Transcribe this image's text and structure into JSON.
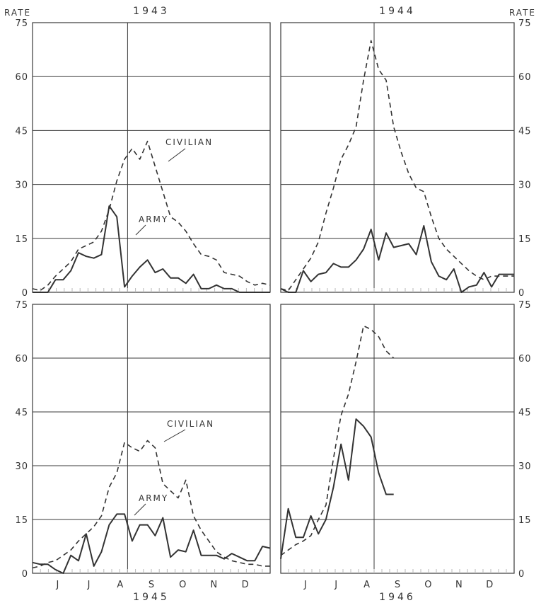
{
  "rate_label": "RATE",
  "colors": {
    "ink": "#333333",
    "grid": "#3a3a3a",
    "background": "#ffffff"
  },
  "chart_data": [
    {
      "type": "line",
      "title": "1943",
      "ylabel": "RATE",
      "ylim": [
        0,
        75
      ],
      "yticks": [
        "0",
        "15",
        "30",
        "45",
        "60",
        "75"
      ],
      "y_axis_side": "left",
      "month_ticks": [],
      "xlim": [
        0,
        31
      ],
      "grid": true,
      "annotations": [
        "CIVILIAN",
        "ARMY"
      ],
      "series": [
        {
          "name": "CIVILIAN",
          "dash": true,
          "x": [
            0,
            1,
            2,
            3,
            4,
            5,
            6,
            7,
            8,
            9,
            10,
            11,
            12,
            13,
            14,
            15,
            16,
            17,
            18,
            19,
            20,
            21,
            22,
            23,
            24,
            25,
            26,
            27,
            28,
            29,
            30,
            31
          ],
          "y": [
            1,
            0.5,
            2,
            4.5,
            6.5,
            8.5,
            12,
            13,
            14,
            17,
            23,
            31,
            37,
            40,
            37,
            42,
            35,
            28,
            21,
            19.5,
            17,
            13.5,
            10.5,
            10,
            9,
            5.5,
            5,
            4.5,
            3,
            2,
            2.5,
            2
          ]
        },
        {
          "name": "ARMY",
          "dash": false,
          "x": [
            0,
            1,
            2,
            3,
            4,
            5,
            6,
            7,
            8,
            9,
            10,
            11,
            12,
            13,
            14,
            15,
            16,
            17,
            18,
            19,
            20,
            21,
            22,
            23,
            24,
            25,
            26,
            27,
            28,
            29,
            30,
            31
          ],
          "y": [
            0,
            0,
            0,
            3.5,
            3.5,
            6,
            11,
            10,
            9.5,
            10.5,
            24,
            21,
            1.5,
            4.5,
            7,
            9,
            5.5,
            6.5,
            4,
            4,
            2.5,
            5,
            1,
            1,
            2,
            1,
            1,
            0,
            0,
            0,
            0,
            0
          ]
        }
      ]
    },
    {
      "type": "line",
      "title": "1944",
      "ylabel": "RATE",
      "ylim": [
        0,
        75
      ],
      "yticks": [
        "0",
        "15",
        "30",
        "45",
        "60",
        "75"
      ],
      "y_axis_side": "right",
      "month_ticks": [],
      "xlim": [
        0,
        31
      ],
      "grid": true,
      "annotations": [],
      "series": [
        {
          "name": "",
          "dash": true,
          "x": [
            0,
            1,
            2,
            3,
            4,
            5,
            6,
            7,
            8,
            9,
            10,
            11,
            12,
            13,
            14,
            15,
            16,
            17,
            18,
            19,
            20,
            21,
            22,
            23,
            24,
            25,
            26,
            27,
            28,
            29,
            30,
            31
          ],
          "y": [
            1,
            0.5,
            3.5,
            6.5,
            9.5,
            14,
            22,
            29,
            37,
            41,
            46,
            59,
            70,
            62,
            59,
            46,
            39,
            33,
            29,
            28,
            21,
            15,
            12,
            10,
            8,
            6,
            4.5,
            3.5,
            4.5,
            4.5,
            4.5,
            4.5
          ]
        },
        {
          "name": "",
          "dash": false,
          "x": [
            0,
            1,
            2,
            3,
            4,
            5,
            6,
            7,
            8,
            9,
            10,
            11,
            12,
            13,
            14,
            15,
            16,
            17,
            18,
            19,
            20,
            21,
            22,
            23,
            24,
            25,
            26,
            27,
            28,
            29,
            30,
            31
          ],
          "y": [
            1,
            0,
            0,
            6,
            3,
            5,
            5.5,
            8,
            7,
            7,
            9,
            12,
            17.5,
            9,
            16.5,
            12.5,
            13,
            13.5,
            10.5,
            18.5,
            8.5,
            4.5,
            3.5,
            6.5,
            0,
            1.5,
            2,
            5.5,
            1.5,
            5,
            5,
            5
          ]
        }
      ]
    },
    {
      "type": "line",
      "title": "1945",
      "ylabel": "RATE",
      "ylim": [
        0,
        75
      ],
      "yticks": [
        "0",
        "15",
        "30",
        "45",
        "60",
        "75"
      ],
      "y_axis_side": "left",
      "month_ticks": [
        "J",
        "J",
        "A",
        "S",
        "O",
        "N",
        "D"
      ],
      "xlim": [
        0,
        31
      ],
      "grid": true,
      "annotations": [
        "CIVILIAN",
        "ARMY"
      ],
      "series": [
        {
          "name": "CIVILIAN",
          "dash": true,
          "x": [
            0,
            1,
            2,
            3,
            4,
            5,
            6,
            7,
            8,
            9,
            10,
            11,
            12,
            13,
            14,
            15,
            16,
            17,
            18,
            19,
            20,
            21,
            22,
            23,
            24,
            25,
            26,
            27,
            28,
            29,
            30,
            31
          ],
          "y": [
            1.5,
            2,
            3,
            3.5,
            5,
            6.5,
            9,
            11,
            13,
            16,
            24,
            28,
            36.5,
            35,
            34,
            37,
            35,
            25,
            23,
            21,
            26,
            16,
            12,
            9,
            6,
            4.5,
            3.5,
            3,
            2.5,
            2.5,
            2,
            2
          ]
        },
        {
          "name": "ARMY",
          "dash": false,
          "x": [
            0,
            1,
            2,
            3,
            4,
            5,
            6,
            7,
            8,
            9,
            10,
            11,
            12,
            13,
            14,
            15,
            16,
            17,
            18,
            19,
            20,
            21,
            22,
            23,
            24,
            25,
            26,
            27,
            28,
            29,
            30,
            31
          ],
          "y": [
            3,
            2.5,
            2.5,
            1,
            0,
            5,
            3.5,
            11,
            2,
            6,
            13.5,
            16.5,
            16.5,
            9,
            13.5,
            13.5,
            10.5,
            15.5,
            4.5,
            6.5,
            6,
            12,
            5,
            5,
            5,
            4,
            5.5,
            4.5,
            3.5,
            3.5,
            7.5,
            7
          ]
        }
      ]
    },
    {
      "type": "line",
      "title": "1946",
      "ylabel": "RATE",
      "ylim": [
        0,
        75
      ],
      "yticks": [
        "0",
        "15",
        "30",
        "45",
        "60",
        "75"
      ],
      "y_axis_side": "right",
      "month_ticks": [
        "J",
        "J",
        "A",
        "S",
        "O",
        "N",
        "D"
      ],
      "xlim": [
        0,
        31
      ],
      "grid": true,
      "annotations": [],
      "series": [
        {
          "name": "",
          "dash": true,
          "x": [
            0,
            1,
            2,
            3,
            4,
            5,
            6,
            7,
            8,
            9,
            10,
            11,
            12,
            13,
            14,
            15
          ],
          "y": [
            5,
            6.5,
            8,
            9,
            10.5,
            15,
            19,
            32,
            44,
            50,
            59,
            69,
            68,
            66,
            62,
            60
          ]
        },
        {
          "name": "",
          "dash": false,
          "x": [
            0,
            1,
            2,
            3,
            4,
            5,
            6,
            7,
            8,
            9,
            10,
            11,
            12,
            13,
            14,
            15
          ],
          "y": [
            4,
            18,
            10,
            10,
            16,
            11,
            15,
            24,
            36,
            26,
            43,
            41,
            38,
            28,
            22,
            22
          ]
        }
      ]
    }
  ]
}
